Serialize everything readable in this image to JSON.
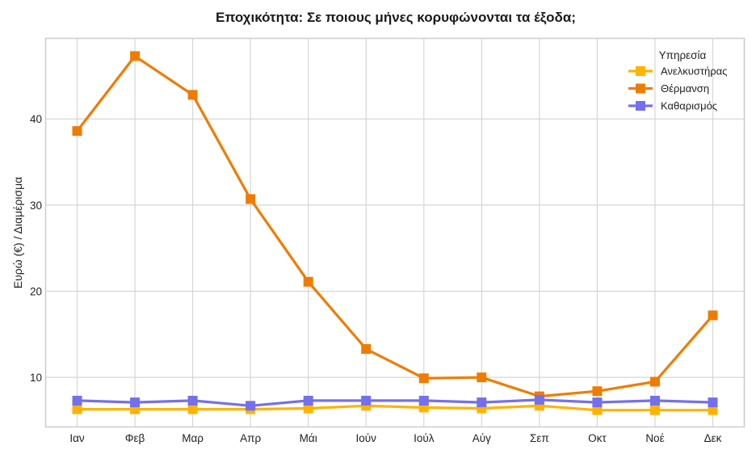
{
  "chart_data": {
    "type": "line",
    "title": "Εποχικότητα: Σε ποιους μήνες κορυφώνονται τα έξοδα;",
    "xlabel": "",
    "ylabel": "Ευρώ (€) / Διαμέρισμα",
    "categories": [
      "Ιαν",
      "Φεβ",
      "Μαρ",
      "Απρ",
      "Μάι",
      "Ιούν",
      "Ιούλ",
      "Αύγ",
      "Σεπ",
      "Οκτ",
      "Νοέ",
      "Δεκ"
    ],
    "yticks": [
      10,
      20,
      30,
      40
    ],
    "ylim": [
      4.2,
      49.4
    ],
    "grid": true,
    "legend": {
      "title": "Υπηρεσία",
      "position": "upper right"
    },
    "series": [
      {
        "name": "Ανελκυστήρας",
        "color": "#FFB300",
        "marker": "square",
        "values": [
          6.3,
          6.3,
          6.3,
          6.3,
          6.4,
          6.7,
          6.5,
          6.4,
          6.7,
          6.2,
          6.2,
          6.2
        ]
      },
      {
        "name": "Θέρμανση",
        "color": "#EF7C00",
        "marker": "square",
        "values": [
          38.6,
          47.3,
          42.8,
          30.7,
          21.1,
          13.3,
          9.9,
          10.0,
          7.8,
          8.4,
          9.5,
          17.2
        ]
      },
      {
        "name": "Καθαρισμός",
        "color": "#7470EB",
        "marker": "square",
        "values": [
          7.3,
          7.1,
          7.3,
          6.7,
          7.3,
          7.3,
          7.3,
          7.1,
          7.4,
          7.1,
          7.3,
          7.1
        ]
      }
    ]
  }
}
